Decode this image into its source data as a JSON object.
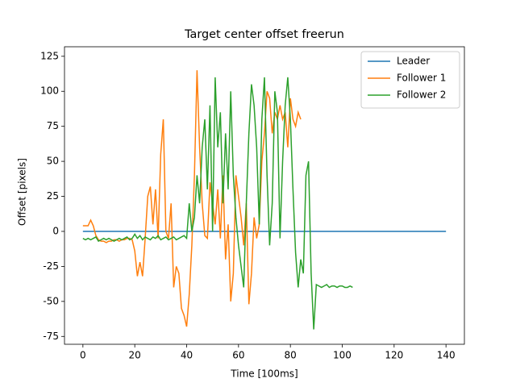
{
  "chart_data": {
    "type": "line",
    "title": "Target center offset freerun",
    "x_label": "Time [100ms]",
    "y_label": "Offset [pixels]",
    "xlim": [
      -7.1,
      147.1
    ],
    "ylim": [
      -80.6,
      131.8
    ],
    "xticks": [
      0,
      20,
      40,
      60,
      80,
      100,
      120,
      140
    ],
    "yticks": [
      -75,
      -50,
      -25,
      0,
      25,
      50,
      75,
      100,
      125
    ],
    "legend": "upper right",
    "series": [
      {
        "name": "Leader",
        "color": "#1f77b4",
        "x": [
          0,
          140
        ],
        "values": [
          0,
          0
        ]
      },
      {
        "name": "Follower 1",
        "color": "#ff7f0e",
        "x": [
          0,
          1,
          2,
          3,
          4,
          5,
          6,
          7,
          8,
          9,
          10,
          11,
          12,
          13,
          14,
          15,
          16,
          17,
          18,
          19,
          20,
          21,
          22,
          23,
          24,
          25,
          26,
          27,
          28,
          29,
          30,
          31,
          32,
          33,
          34,
          35,
          36,
          37,
          38,
          39,
          40,
          41,
          42,
          43,
          44,
          45,
          46,
          47,
          48,
          49,
          50,
          51,
          52,
          53,
          54,
          55,
          56,
          57,
          58,
          59,
          60,
          61,
          62,
          63,
          64,
          65,
          66,
          67,
          68,
          69,
          70,
          71,
          72,
          73,
          74,
          75,
          76,
          77,
          78,
          79,
          80,
          81,
          82,
          83,
          84
        ],
        "values": [
          4,
          4,
          4,
          8,
          4,
          -3,
          -6,
          -7,
          -7,
          -8,
          -7,
          -7,
          -6,
          -6,
          -7,
          -6,
          -6,
          -5,
          -5,
          -6,
          -14,
          -32,
          -22,
          -32,
          -5,
          25,
          32,
          5,
          30,
          -5,
          55,
          80,
          0,
          -5,
          20,
          -40,
          -25,
          -30,
          -55,
          -60,
          -68,
          -45,
          -10,
          40,
          115,
          60,
          20,
          -3,
          -5,
          35,
          20,
          5,
          30,
          -5,
          40,
          -20,
          5,
          -50,
          -30,
          40,
          25,
          10,
          -10,
          20,
          -52,
          -30,
          10,
          -5,
          5,
          50,
          70,
          100,
          95,
          70,
          85,
          80,
          90,
          80,
          85,
          60,
          95,
          80,
          75,
          85,
          80
        ]
      },
      {
        "name": "Follower 2",
        "color": "#2ca02c",
        "x": [
          0,
          1,
          2,
          3,
          4,
          5,
          6,
          7,
          8,
          9,
          10,
          11,
          12,
          13,
          14,
          15,
          16,
          17,
          18,
          19,
          20,
          21,
          22,
          23,
          24,
          25,
          26,
          27,
          28,
          29,
          30,
          31,
          32,
          33,
          34,
          35,
          36,
          37,
          38,
          39,
          40,
          41,
          42,
          43,
          44,
          45,
          46,
          47,
          48,
          49,
          50,
          51,
          52,
          53,
          54,
          55,
          56,
          57,
          58,
          59,
          60,
          61,
          62,
          63,
          64,
          65,
          66,
          67,
          68,
          69,
          70,
          71,
          72,
          73,
          74,
          75,
          76,
          77,
          78,
          79,
          80,
          81,
          82,
          83,
          84,
          85,
          86,
          87,
          88,
          89,
          90,
          91,
          92,
          93,
          94,
          95,
          96,
          97,
          98,
          99,
          100,
          101,
          102,
          103,
          104
        ],
        "values": [
          -5,
          -6,
          -5,
          -6,
          -5,
          -4,
          -7,
          -6,
          -5,
          -6,
          -5,
          -6,
          -7,
          -6,
          -5,
          -6,
          -5,
          -4,
          -6,
          -5,
          -2,
          -5,
          -3,
          -6,
          -4,
          -5,
          -6,
          -4,
          -5,
          -3,
          -6,
          -5,
          -4,
          -6,
          -5,
          -4,
          -6,
          -5,
          -4,
          -3,
          -5,
          20,
          0,
          10,
          40,
          20,
          60,
          80,
          30,
          90,
          0,
          110,
          60,
          85,
          20,
          70,
          30,
          100,
          40,
          10,
          -10,
          -25,
          -40,
          20,
          70,
          105,
          90,
          60,
          5,
          80,
          110,
          40,
          -10,
          20,
          100,
          85,
          -5,
          50,
          90,
          110,
          80,
          30,
          -15,
          -40,
          -20,
          -30,
          40,
          50,
          -30,
          -70,
          -38,
          -39,
          -40,
          -39,
          -38,
          -40,
          -39,
          -39,
          -40,
          -39,
          -39,
          -40,
          -40,
          -39,
          -40
        ]
      }
    ]
  }
}
